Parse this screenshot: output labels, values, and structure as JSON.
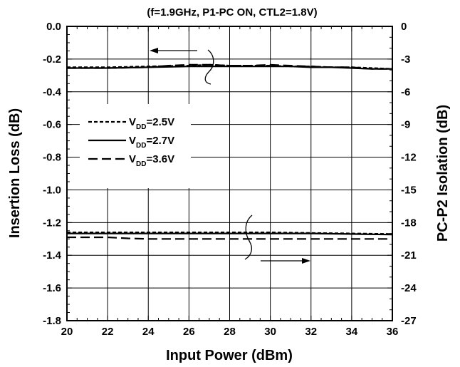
{
  "chart_data": {
    "type": "line",
    "title": "(f=1.9GHz, P1-PC ON, CTL2=1.8V)",
    "xlabel": "Input Power  (dBm)",
    "ylabel_left": "Insertion Loss  (dB)",
    "ylabel_right": "PC-P2 Isolation  (dB)",
    "xlim": [
      20,
      36
    ],
    "ylim_left": [
      -1.8,
      0.0
    ],
    "ylim_right": [
      -27,
      0
    ],
    "grid": true,
    "legend_position": "left",
    "x_ticks": [
      20,
      22,
      24,
      26,
      28,
      30,
      32,
      34,
      36
    ],
    "y_left_ticks": [
      "0.0",
      "-0.2",
      "-0.4",
      "-0.6",
      "-0.8",
      "-1.0",
      "-1.2",
      "-1.4",
      "-1.6",
      "-1.8"
    ],
    "y_right_ticks": [
      "0",
      "-3",
      "-6",
      "-9",
      "-12",
      "-15",
      "-18",
      "-21",
      "-24",
      "-27"
    ],
    "legend": [
      {
        "prefix": "V",
        "sub": "DD",
        "suffix": "=2.5V",
        "dash": "short-dash"
      },
      {
        "prefix": "V",
        "sub": "DD",
        "suffix": "=2.7V",
        "dash": "solid"
      },
      {
        "prefix": "V",
        "sub": "DD",
        "suffix": "=3.6V",
        "dash": "long-dash"
      }
    ],
    "series": [
      {
        "name": "VDD=2.5V",
        "axis": "left",
        "group": "insertion_loss",
        "x": [
          20,
          22,
          24,
          26,
          27,
          28,
          29,
          30,
          31,
          32,
          33,
          34,
          35,
          36
        ],
        "y": [
          -0.25,
          -0.25,
          -0.245,
          -0.24,
          -0.235,
          -0.24,
          -0.24,
          -0.24,
          -0.245,
          -0.245,
          -0.25,
          -0.25,
          -0.255,
          -0.26
        ]
      },
      {
        "name": "VDD=2.7V",
        "axis": "left",
        "group": "insertion_loss",
        "x": [
          20,
          22,
          24,
          26,
          27,
          28,
          29,
          30,
          31,
          32,
          33,
          34,
          35,
          36
        ],
        "y": [
          -0.255,
          -0.255,
          -0.25,
          -0.245,
          -0.245,
          -0.245,
          -0.245,
          -0.245,
          -0.245,
          -0.25,
          -0.25,
          -0.255,
          -0.26,
          -0.26
        ]
      },
      {
        "name": "VDD=3.6V",
        "axis": "left",
        "group": "insertion_loss",
        "x": [
          20,
          22,
          24,
          25,
          26,
          27,
          28,
          29,
          30,
          31,
          32,
          33,
          34,
          35,
          36
        ],
        "y": [
          -0.255,
          -0.255,
          -0.25,
          -0.24,
          -0.235,
          -0.235,
          -0.24,
          -0.24,
          -0.235,
          -0.24,
          -0.245,
          -0.25,
          -0.25,
          -0.26,
          -0.26
        ]
      },
      {
        "name": "VDD=2.5V",
        "axis": "right",
        "group": "isolation",
        "x": [
          20,
          22,
          24,
          26,
          28,
          30,
          32,
          34,
          36
        ],
        "y": [
          -18.9,
          -18.9,
          -18.9,
          -18.9,
          -18.9,
          -18.9,
          -18.95,
          -19.0,
          -19.05
        ]
      },
      {
        "name": "VDD=2.7V",
        "axis": "right",
        "group": "isolation",
        "x": [
          20,
          22,
          24,
          26,
          28,
          30,
          32,
          34,
          36
        ],
        "y": [
          -19.0,
          -19.0,
          -19.0,
          -19.0,
          -19.0,
          -19.0,
          -19.0,
          -19.05,
          -19.1
        ]
      },
      {
        "name": "VDD=3.6V",
        "axis": "right",
        "group": "isolation",
        "x": [
          20,
          21,
          22,
          23,
          24,
          26,
          28,
          30,
          32,
          34,
          36
        ],
        "y": [
          -19.35,
          -19.35,
          -19.35,
          -19.45,
          -19.5,
          -19.5,
          -19.5,
          -19.5,
          -19.5,
          -19.5,
          -19.5
        ]
      }
    ],
    "annotations": [
      {
        "label": "insertion-loss-arrow",
        "points_to": "left axis",
        "x": 26.5,
        "y": -0.17
      },
      {
        "label": "isolation-arrow",
        "points_to": "right axis",
        "x": 31,
        "y": -20.7
      }
    ]
  }
}
